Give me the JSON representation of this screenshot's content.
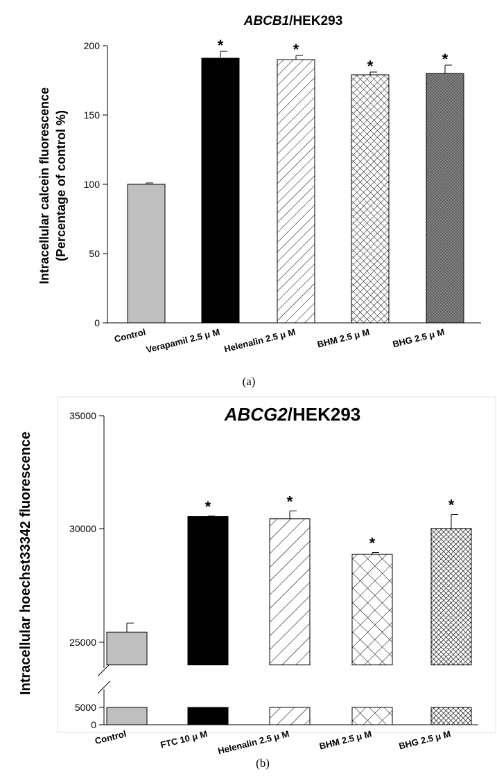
{
  "chart_data": [
    {
      "type": "bar",
      "panel_label": "(a)",
      "title_italic": "ABCB1",
      "title_rest": "/HEK293",
      "ylabel_line1": "Intracellular calcein fluorescence",
      "ylabel_line2": "(Percentage of control %)",
      "xlabel": "",
      "ylim": [
        0,
        200
      ],
      "yticks": [
        "0",
        "50",
        "100",
        "150",
        "200"
      ],
      "categories": [
        "Control",
        "Verapamil 2.5 μ  M",
        "Helenalin 2.5 μ  M",
        "BHM 2.5 μ  M",
        "BHG 2.5 μ  M"
      ],
      "values": [
        100,
        191,
        190,
        179,
        180
      ],
      "errors": [
        1,
        5,
        3,
        2,
        6
      ],
      "significance": [
        "",
        "*",
        "*",
        "*",
        "*"
      ],
      "fills": [
        "gray",
        "black",
        "diagonal",
        "crosshatch",
        "dense-crosshatch"
      ]
    },
    {
      "type": "bar",
      "panel_label": "(b)",
      "title_italic": "ABCG2",
      "title_rest": "/HEK293",
      "ylabel": "Intracellular hoechst33342 fluorescence",
      "xlabel": "",
      "axis_break": [
        5000,
        24000
      ],
      "ylim": [
        0,
        35000
      ],
      "yticks": [
        "0",
        "5000",
        "25000",
        "30000",
        "35000"
      ],
      "categories": [
        "Control",
        "FTC 10 μ  M",
        "Helenalin 2.5 μ  M",
        "BHM 2.5 μ  M",
        "BHG 2.5 μ  M"
      ],
      "values": [
        25450,
        30550,
        30450,
        28880,
        30020
      ],
      "errors": [
        400,
        20,
        350,
        80,
        620
      ],
      "significance": [
        "",
        "*",
        "*",
        "*",
        "*"
      ],
      "fills": [
        "gray",
        "black",
        "diagonal",
        "crosshatch",
        "dense-crosshatch"
      ]
    }
  ]
}
